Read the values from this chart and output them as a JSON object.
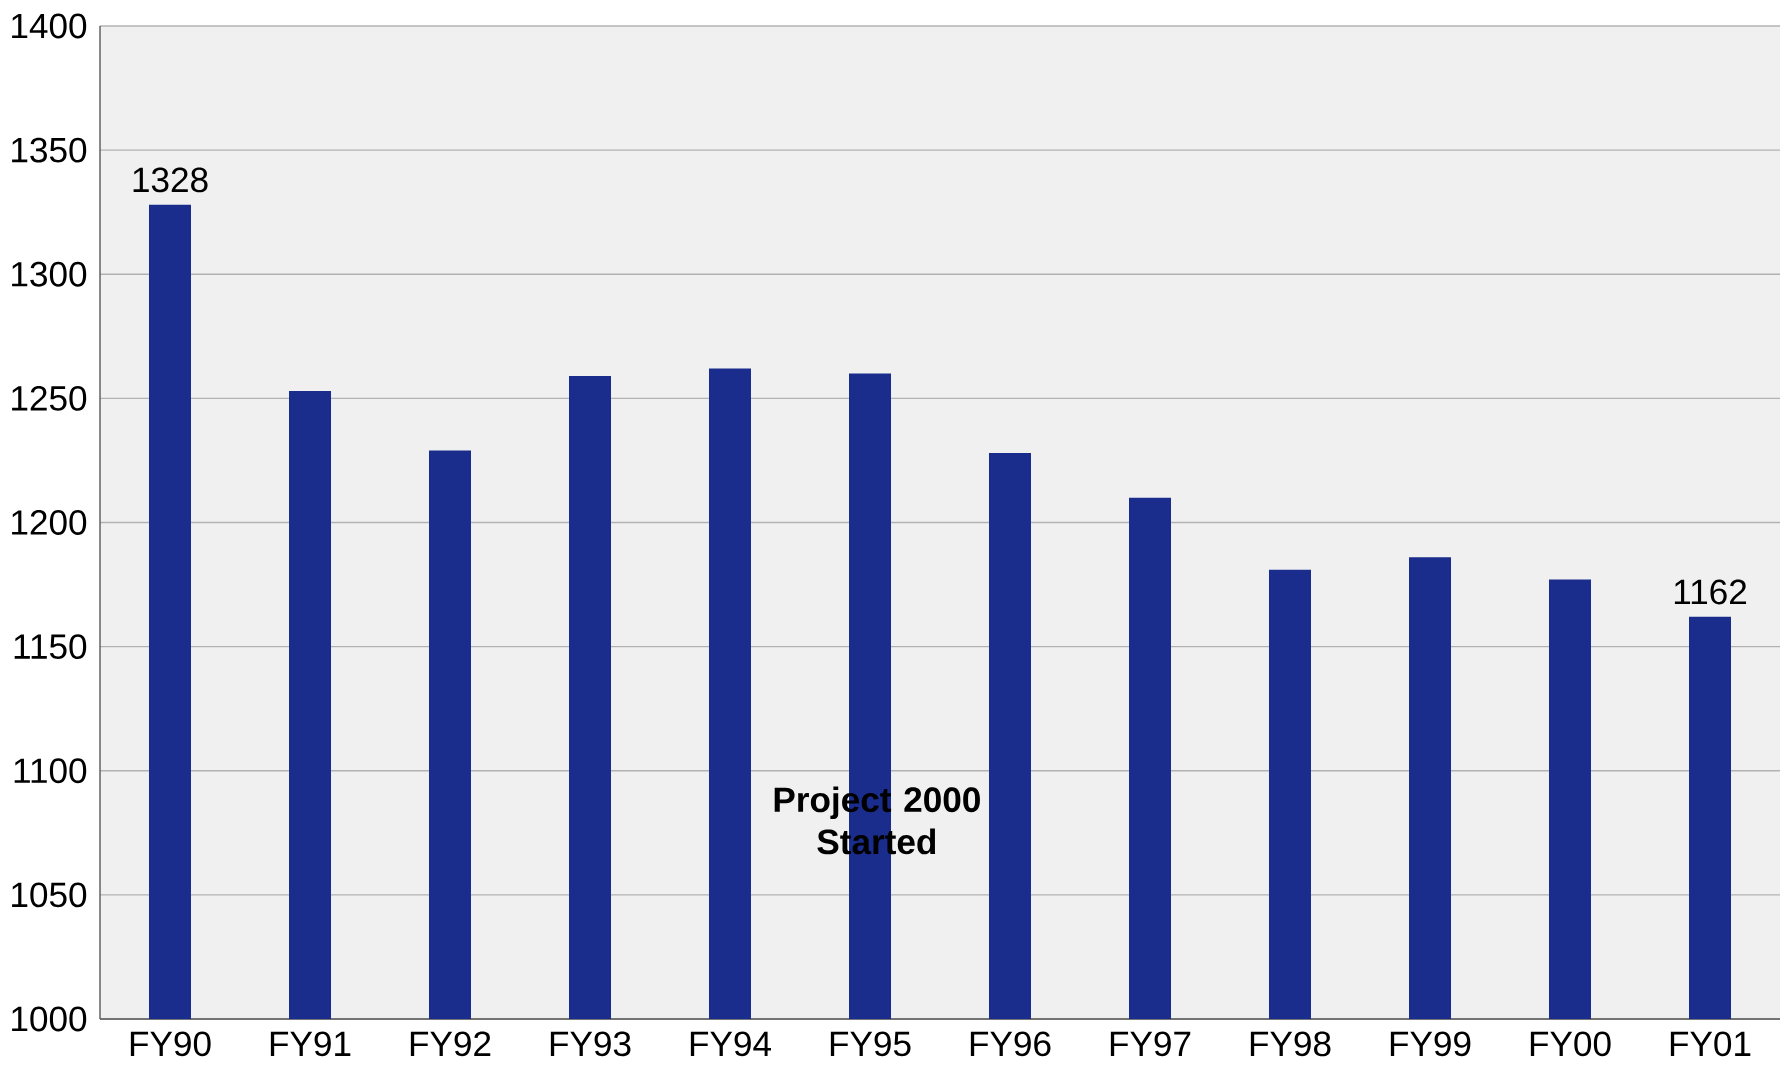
{
  "chart_data": {
    "type": "bar",
    "categories": [
      "FY90",
      "FY91",
      "FY92",
      "FY93",
      "FY94",
      "FY95",
      "FY96",
      "FY97",
      "FY98",
      "FY99",
      "FY00",
      "FY01"
    ],
    "values": [
      1328,
      1253,
      1229,
      1259,
      1262,
      1260,
      1228,
      1210,
      1181,
      1186,
      1177,
      1162
    ],
    "value_labels": [
      "1328",
      null,
      null,
      null,
      null,
      null,
      null,
      null,
      null,
      null,
      null,
      "1162"
    ],
    "color": "#1a2d8c",
    "ylim": [
      1000,
      1400
    ],
    "yticks": [
      1000,
      1050,
      1100,
      1150,
      1200,
      1250,
      1300,
      1350,
      1400
    ],
    "grid": "y",
    "annotations": [
      "**Project 2000 Started**"
    ]
  }
}
